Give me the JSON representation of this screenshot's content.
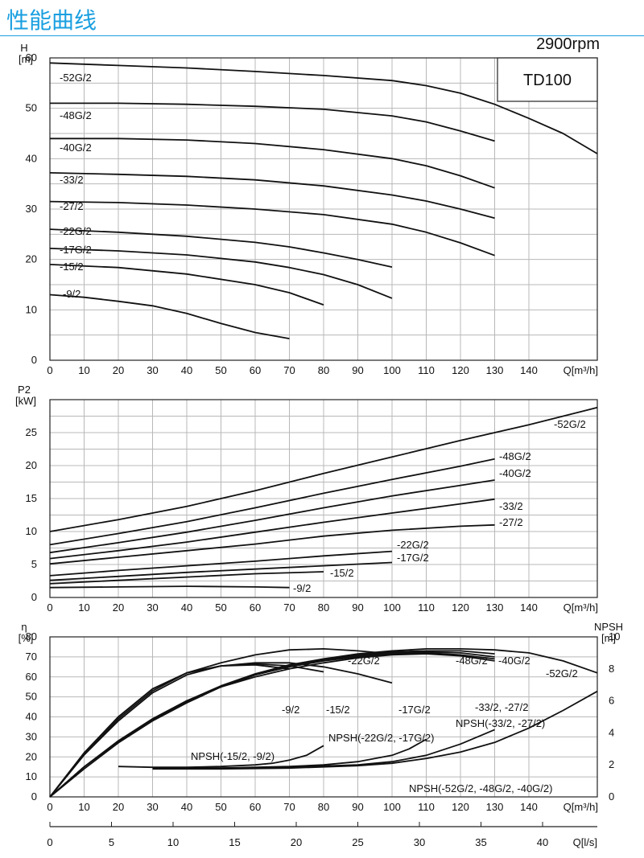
{
  "header": {
    "title": "性能曲线",
    "speed": "2900rpm",
    "model": "TD100"
  },
  "colors": {
    "title": "#1a9fe0",
    "curve": "#111111",
    "grid": "#b8b8b8"
  },
  "chart_data": [
    {
      "type": "line",
      "id": "head",
      "ylabel": "H",
      "yunit": "[m]",
      "xlabel": "Q[m³/h]",
      "xlim": [
        0,
        160
      ],
      "ylim": [
        0,
        60
      ],
      "xticks": [
        0,
        10,
        20,
        30,
        40,
        50,
        60,
        70,
        80,
        90,
        100,
        110,
        120,
        130,
        140
      ],
      "yticks": [
        0,
        10,
        20,
        30,
        40,
        50,
        60
      ],
      "grid": true,
      "series": [
        {
          "name": "-52G/2",
          "x": [
            0,
            20,
            40,
            60,
            80,
            100,
            110,
            120,
            130,
            140,
            150,
            160
          ],
          "y": [
            59,
            58.5,
            58,
            57.3,
            56.5,
            55.5,
            54.5,
            53,
            50.8,
            48,
            45,
            41
          ]
        },
        {
          "name": "-48G/2",
          "x": [
            0,
            20,
            40,
            60,
            80,
            100,
            110,
            120,
            130
          ],
          "y": [
            51,
            51,
            50.8,
            50.4,
            49.8,
            48.5,
            47.3,
            45.5,
            43.5
          ]
        },
        {
          "name": "-40G/2",
          "x": [
            0,
            20,
            40,
            60,
            80,
            100,
            110,
            120,
            130
          ],
          "y": [
            44,
            44,
            43.7,
            43,
            41.8,
            40,
            38.6,
            36.6,
            34.2
          ]
        },
        {
          "name": "-33/2",
          "x": [
            0,
            20,
            40,
            60,
            80,
            100,
            110,
            120,
            130
          ],
          "y": [
            37.2,
            36.9,
            36.5,
            35.8,
            34.6,
            32.8,
            31.6,
            30,
            28.2
          ]
        },
        {
          "name": "-27/2",
          "x": [
            0,
            20,
            40,
            60,
            80,
            100,
            110,
            120,
            130
          ],
          "y": [
            31.5,
            31.3,
            30.8,
            30,
            28.9,
            27,
            25.4,
            23.3,
            20.8
          ]
        },
        {
          "name": "-22G/2",
          "x": [
            0,
            20,
            40,
            60,
            70,
            80,
            90,
            100
          ],
          "y": [
            26,
            25.4,
            24.6,
            23.4,
            22.5,
            21.3,
            20,
            18.5
          ]
        },
        {
          "name": "-17G/2",
          "x": [
            0,
            20,
            40,
            60,
            70,
            80,
            90,
            100
          ],
          "y": [
            22.2,
            21.7,
            20.9,
            19.5,
            18.4,
            17,
            15,
            12.3
          ]
        },
        {
          "name": "-15/2",
          "x": [
            0,
            20,
            40,
            60,
            70,
            80
          ],
          "y": [
            19,
            18.4,
            17.1,
            15,
            13.4,
            11
          ]
        },
        {
          "name": "-9/2",
          "x": [
            0,
            10,
            20,
            30,
            40,
            50,
            60,
            70
          ],
          "y": [
            13,
            12.5,
            11.7,
            10.8,
            9.3,
            7.3,
            5.5,
            4.3
          ]
        }
      ]
    },
    {
      "type": "line",
      "id": "power",
      "ylabel": "P2",
      "yunit": "[kW]",
      "xlabel": "Q[m³/h]",
      "xlim": [
        0,
        160
      ],
      "ylim": [
        0,
        30
      ],
      "xticks": [
        0,
        10,
        20,
        30,
        40,
        50,
        60,
        70,
        80,
        90,
        100,
        110,
        120,
        130,
        140
      ],
      "yticks": [
        0,
        5,
        10,
        15,
        20,
        25
      ],
      "grid": true,
      "series": [
        {
          "name": "-52G/2",
          "x": [
            0,
            20,
            40,
            60,
            80,
            100,
            120,
            140,
            160
          ],
          "y": [
            10,
            11.8,
            13.8,
            16.2,
            18.8,
            21.3,
            23.8,
            26.2,
            28.8
          ]
        },
        {
          "name": "-48G/2",
          "x": [
            0,
            20,
            40,
            60,
            80,
            100,
            120,
            130
          ],
          "y": [
            8,
            9.7,
            11.5,
            13.6,
            15.8,
            17.9,
            19.9,
            21
          ]
        },
        {
          "name": "-40G/2",
          "x": [
            0,
            20,
            40,
            60,
            80,
            100,
            120,
            130
          ],
          "y": [
            6.8,
            8.3,
            9.9,
            11.7,
            13.6,
            15.4,
            17,
            17.8
          ]
        },
        {
          "name": "-33/2",
          "x": [
            0,
            20,
            40,
            60,
            80,
            100,
            120,
            130
          ],
          "y": [
            5.9,
            7.1,
            8.4,
            9.9,
            11.4,
            12.8,
            14.2,
            14.9
          ]
        },
        {
          "name": "-27/2",
          "x": [
            0,
            20,
            40,
            60,
            80,
            100,
            120,
            130
          ],
          "y": [
            5.1,
            6.1,
            7.1,
            8.1,
            9.3,
            10.2,
            10.8,
            11
          ]
        },
        {
          "name": "-22G/2",
          "x": [
            0,
            20,
            40,
            60,
            80,
            100
          ],
          "y": [
            3.3,
            4.1,
            4.8,
            5.5,
            6.3,
            7
          ]
        },
        {
          "name": "-17G/2",
          "x": [
            0,
            20,
            40,
            60,
            80,
            100
          ],
          "y": [
            2.6,
            3.2,
            3.8,
            4.3,
            4.8,
            5.3
          ]
        },
        {
          "name": "-15/2",
          "x": [
            0,
            20,
            40,
            60,
            80
          ],
          "y": [
            2.1,
            2.6,
            3.1,
            3.6,
            3.9
          ]
        },
        {
          "name": "-9/2",
          "x": [
            0,
            20,
            40,
            60,
            70
          ],
          "y": [
            1.5,
            1.6,
            1.7,
            1.6,
            1.5
          ]
        }
      ]
    },
    {
      "type": "line",
      "id": "efficiency",
      "ylabel": "η",
      "yunit": "[%]",
      "y2label": "NPSH",
      "y2unit": "[m]",
      "xlabel": "Q[m³/h]",
      "x2label": "Q[l/s]",
      "xlim": [
        0,
        160
      ],
      "ylim": [
        0,
        80
      ],
      "y2lim": [
        0,
        10
      ],
      "xticks": [
        0,
        10,
        20,
        30,
        40,
        50,
        60,
        70,
        80,
        90,
        100,
        110,
        120,
        130,
        140
      ],
      "yticks": [
        0,
        10,
        20,
        30,
        40,
        50,
        60,
        70,
        80
      ],
      "y2ticks": [
        0,
        2,
        4,
        6,
        8,
        10
      ],
      "x2ticks": [
        0,
        5,
        10,
        15,
        20,
        25,
        30,
        35,
        40
      ],
      "grid": true,
      "series": [
        {
          "name": "-9/2",
          "x": [
            0,
            10,
            20,
            30,
            40,
            50,
            60,
            70
          ],
          "y": [
            0,
            22,
            40,
            54,
            62,
            65.5,
            66,
            64
          ]
        },
        {
          "name": "-15/2",
          "x": [
            0,
            10,
            20,
            30,
            40,
            50,
            60,
            70,
            80
          ],
          "y": [
            0,
            22,
            40,
            54,
            62,
            65.5,
            66.5,
            65.5,
            62.5
          ]
        },
        {
          "name": "-17G/2",
          "x": [
            0,
            10,
            20,
            30,
            40,
            50,
            60,
            70,
            80,
            90,
            100
          ],
          "y": [
            0,
            21,
            38,
            52,
            61,
            65.5,
            67,
            67,
            65,
            61.5,
            57
          ]
        },
        {
          "name": "-22G/2",
          "x": [
            0,
            10,
            20,
            30,
            40,
            50,
            60,
            70,
            80,
            90,
            100
          ],
          "y": [
            0,
            21,
            39,
            53,
            62,
            67,
            71,
            73.5,
            74,
            73,
            71.5
          ]
        },
        {
          "name": "-27/2",
          "x": [
            0,
            10,
            20,
            30,
            40,
            50,
            60,
            70,
            80,
            90,
            100,
            110,
            120,
            130
          ],
          "y": [
            0,
            15,
            28,
            39,
            48,
            55,
            60,
            64,
            67,
            69.5,
            71,
            71.5,
            70.5,
            68
          ]
        },
        {
          "name": "-33/2",
          "x": [
            0,
            10,
            20,
            30,
            40,
            50,
            60,
            70,
            80,
            90,
            100,
            110,
            120,
            130
          ],
          "y": [
            0,
            15,
            28,
            39,
            48,
            55,
            61,
            65,
            68,
            70,
            71.5,
            72,
            71,
            69
          ]
        },
        {
          "name": "-40G/2",
          "x": [
            0,
            10,
            20,
            30,
            40,
            50,
            60,
            70,
            80,
            90,
            100,
            110,
            120,
            130
          ],
          "y": [
            0,
            15,
            27.5,
            38.5,
            47.5,
            55,
            61,
            65.5,
            68.5,
            70.5,
            72,
            72.5,
            72,
            70
          ]
        },
        {
          "name": "-48G/2",
          "x": [
            0,
            10,
            20,
            30,
            40,
            50,
            60,
            70,
            80,
            90,
            100,
            110,
            120,
            130
          ],
          "y": [
            0,
            15,
            28,
            39,
            48,
            55.5,
            61.5,
            66,
            69,
            71,
            72.5,
            73,
            73,
            71.5
          ]
        },
        {
          "name": "-52G/2",
          "x": [
            0,
            10,
            20,
            30,
            40,
            50,
            60,
            70,
            80,
            90,
            100,
            110,
            120,
            130,
            140,
            150,
            160
          ],
          "y": [
            0,
            14,
            27,
            38,
            47,
            55,
            61,
            65.5,
            69,
            71.5,
            73,
            74,
            74,
            73.5,
            72,
            68,
            62
          ]
        },
        {
          "name": "NPSH(-15/2, -9/2)",
          "axis": "y2",
          "x": [
            20,
            30,
            40,
            50,
            60,
            65,
            70,
            75,
            80
          ],
          "y": [
            1.9,
            1.85,
            1.85,
            1.9,
            2,
            2.1,
            2.3,
            2.6,
            3.2
          ]
        },
        {
          "name": "NPSH(-22G/2, -17G/2)",
          "axis": "y2",
          "x": [
            30,
            40,
            50,
            60,
            70,
            80,
            90,
            100,
            105,
            110
          ],
          "y": [
            1.8,
            1.8,
            1.8,
            1.85,
            1.9,
            2,
            2.2,
            2.6,
            3,
            3.6
          ]
        },
        {
          "name": "NPSH(-33/2, -27/2)",
          "axis": "y2",
          "x": [
            30,
            50,
            70,
            90,
            100,
            110,
            120,
            130
          ],
          "y": [
            1.8,
            1.8,
            1.85,
            2,
            2.2,
            2.6,
            3.3,
            4.2
          ]
        },
        {
          "name": "NPSH(-52G/2, -48G/2, -40G/2)",
          "axis": "y2",
          "x": [
            30,
            50,
            70,
            90,
            100,
            110,
            120,
            130,
            140,
            150,
            160
          ],
          "y": [
            1.75,
            1.75,
            1.8,
            1.95,
            2.1,
            2.4,
            2.8,
            3.4,
            4.3,
            5.4,
            6.6
          ]
        }
      ]
    }
  ],
  "labels": {
    "head": [
      "-52G/2",
      "-48G/2",
      "-40G/2",
      "-33/2",
      "-27/2",
      "-22G/2",
      "-17G/2",
      "-15/2",
      "-9/2"
    ],
    "power": [
      "-52G/2",
      "-48G/2",
      "-40G/2",
      "-33/2",
      "-27/2",
      "-22G/2",
      "-17G/2",
      "-15/2",
      "-9/2"
    ],
    "efficiency": [
      "-22G/2",
      "-48G/2",
      "-40G/2",
      "-52G/2",
      "-9/2",
      "-15/2",
      "-17G/2",
      "-33/2, -27/2",
      "NPSH(-33/2, -27/2)",
      "NPSH(-22G/2, -17G/2)",
      "NPSH(-15/2, -9/2)",
      "NPSH(-52G/2, -48G/2, -40G/2)"
    ]
  }
}
